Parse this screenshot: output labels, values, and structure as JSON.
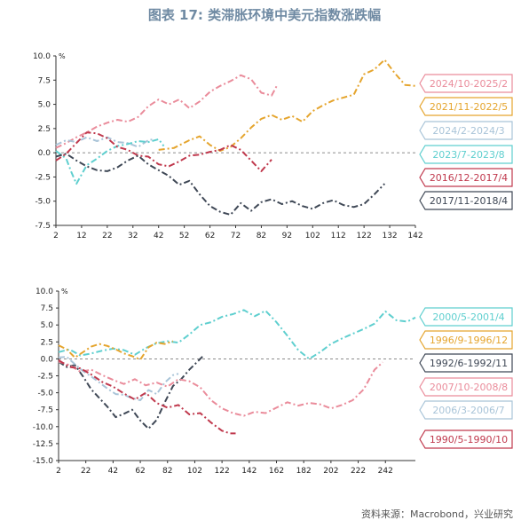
{
  "title": "图表 17: 类滞胀环境中美元指数涨跌幅",
  "source": "资料来源：Macrobond，兴业研究",
  "chart_data": [
    {
      "type": "line",
      "unit": "%",
      "ylim": [
        -7.5,
        10
      ],
      "yticks": [
        "10.0",
        "7.5",
        "5.0",
        "2.5",
        "0.0",
        "-2.5",
        "-5.0",
        "-7.5"
      ],
      "xticks": [
        "2",
        "12",
        "22",
        "32",
        "42",
        "52",
        "62",
        "72",
        "82",
        "92",
        "102",
        "112",
        "122",
        "132",
        "142"
      ],
      "xlim": [
        2,
        142
      ],
      "series": [
        {
          "name": "2024/10-2025/2",
          "color": "#ea8c9b",
          "x": [
            2,
            6,
            10,
            14,
            18,
            22,
            26,
            30,
            34,
            38,
            42,
            46,
            50,
            54,
            58,
            62,
            66,
            70,
            74,
            78,
            82,
            86,
            88
          ],
          "y": [
            0.5,
            1.0,
            1.6,
            2.1,
            2.7,
            3.1,
            3.4,
            3.2,
            3.7,
            4.8,
            5.5,
            5.0,
            5.5,
            4.6,
            5.3,
            6.3,
            6.9,
            7.4,
            8.0,
            7.6,
            6.2,
            5.9,
            6.9
          ]
        },
        {
          "name": "2021/11-2022/5",
          "color": "#e5a52e",
          "x": [
            42,
            48,
            54,
            58,
            62,
            66,
            70,
            74,
            78,
            82,
            86,
            90,
            94,
            98,
            102,
            106,
            110,
            114,
            118,
            122,
            126,
            130,
            134,
            138,
            142
          ],
          "y": [
            0.3,
            0.5,
            1.3,
            1.7,
            0.8,
            0.2,
            0.6,
            1.5,
            2.6,
            3.5,
            3.9,
            3.4,
            3.8,
            3.2,
            4.3,
            4.9,
            5.4,
            5.7,
            6.0,
            8.1,
            8.6,
            9.6,
            8.2,
            7.0,
            6.9
          ]
        },
        {
          "name": "2024/2-2024/3",
          "color": "#a9c4d8",
          "x": [
            2,
            6,
            10,
            14,
            18,
            22,
            26,
            30,
            34,
            38,
            40
          ],
          "y": [
            0.8,
            1.3,
            1.1,
            1.6,
            1.2,
            1.6,
            1.1,
            1.0,
            0.6,
            1.3,
            1.4
          ]
        },
        {
          "name": "2023/7-2023/8",
          "color": "#5fcfcf",
          "x": [
            2,
            6,
            8,
            10,
            14,
            18,
            22,
            26,
            30,
            34,
            38,
            42,
            44
          ],
          "y": [
            0.2,
            -0.6,
            -2.0,
            -3.2,
            -1.3,
            -0.6,
            0.2,
            0.7,
            0.9,
            1.2,
            1.1,
            1.4,
            0.7
          ]
        },
        {
          "name": "2016/12-2017/4",
          "color": "#c0394d",
          "x": [
            2,
            6,
            10,
            14,
            18,
            22,
            26,
            30,
            34,
            38,
            42,
            46,
            50,
            54,
            58,
            62,
            66,
            70,
            74,
            78,
            82,
            86
          ],
          "y": [
            -0.8,
            -0.1,
            1.0,
            2.1,
            2.0,
            1.5,
            0.6,
            0.3,
            -0.3,
            -0.4,
            -1.2,
            -1.4,
            -0.9,
            -0.3,
            -0.2,
            0.1,
            0.3,
            0.8,
            0.3,
            -0.8,
            -1.9,
            -0.7
          ]
        },
        {
          "name": "2017/11-2018/4",
          "color": "#3f4856",
          "x": [
            2,
            6,
            10,
            14,
            18,
            22,
            26,
            30,
            34,
            38,
            42,
            46,
            50,
            54,
            58,
            62,
            66,
            70,
            74,
            78,
            82,
            86,
            90,
            94,
            98,
            102,
            106,
            110,
            114,
            118,
            122,
            126,
            130
          ],
          "y": [
            -0.4,
            -0.1,
            -0.8,
            -1.4,
            -1.8,
            -1.9,
            -1.5,
            -0.8,
            -0.3,
            -1.2,
            -1.8,
            -2.4,
            -3.3,
            -2.9,
            -4.3,
            -5.5,
            -6.1,
            -6.4,
            -5.2,
            -6.0,
            -5.1,
            -4.8,
            -5.3,
            -5.0,
            -5.5,
            -5.8,
            -5.2,
            -4.9,
            -5.4,
            -5.6,
            -5.3,
            -4.3,
            -3.2
          ]
        }
      ]
    },
    {
      "type": "line",
      "unit": "%",
      "ylim": [
        -15,
        10
      ],
      "yticks": [
        "10.0",
        "7.5",
        "5.0",
        "2.5",
        "0.0",
        "-2.5",
        "-5.0",
        "-7.5",
        "-10.0",
        "-12.5",
        "-15.0"
      ],
      "xticks": [
        "2",
        "22",
        "42",
        "62",
        "82",
        "102",
        "122",
        "142",
        "162",
        "182",
        "202",
        "222",
        "242"
      ],
      "xlim": [
        2,
        264
      ],
      "series": [
        {
          "name": "2000/5-2001/4",
          "color": "#5fcfcf",
          "x": [
            2,
            10,
            18,
            26,
            34,
            42,
            50,
            58,
            66,
            74,
            82,
            90,
            98,
            106,
            114,
            122,
            130,
            138,
            146,
            154,
            162,
            170,
            178,
            186,
            194,
            202,
            210,
            218,
            226,
            234,
            242,
            250,
            258,
            264
          ],
          "y": [
            1.0,
            1.4,
            0.5,
            0.8,
            1.2,
            1.5,
            1.3,
            0.6,
            1.6,
            2.3,
            2.6,
            2.4,
            3.6,
            5.0,
            5.4,
            6.2,
            6.6,
            7.2,
            6.3,
            7.1,
            5.4,
            3.4,
            1.3,
            0.0,
            1.0,
            2.2,
            3.0,
            3.7,
            4.4,
            5.2,
            7.0,
            5.7,
            5.5,
            6.1
          ]
        },
        {
          "name": "1996/9-1996/12",
          "color": "#e5a52e",
          "x": [
            2,
            8,
            14,
            20,
            26,
            32,
            38,
            44,
            50,
            56,
            62,
            68,
            74,
            80,
            86
          ],
          "y": [
            2.0,
            1.4,
            0.2,
            1.0,
            1.8,
            2.2,
            1.9,
            1.4,
            0.8,
            0.4,
            -0.1,
            1.7,
            2.4,
            2.2,
            2.6
          ]
        },
        {
          "name": "1992/6-1992/11",
          "color": "#3f4856",
          "x": [
            2,
            8,
            14,
            20,
            26,
            32,
            38,
            44,
            50,
            56,
            62,
            68,
            74,
            80,
            86,
            92,
            98,
            104,
            108
          ],
          "y": [
            -0.4,
            -1.2,
            -0.9,
            -2.6,
            -4.5,
            -5.8,
            -7.1,
            -8.6,
            -8.1,
            -7.5,
            -9.1,
            -10.3,
            -9.0,
            -6.4,
            -4.0,
            -3.0,
            -1.6,
            -0.4,
            0.4
          ]
        },
        {
          "name": "2007/10-2008/8",
          "color": "#ea8c9b",
          "x": [
            2,
            10,
            18,
            26,
            34,
            42,
            50,
            58,
            66,
            74,
            82,
            90,
            98,
            106,
            114,
            122,
            130,
            138,
            146,
            154,
            162,
            170,
            178,
            186,
            194,
            202,
            210,
            218,
            226,
            234,
            240
          ],
          "y": [
            -0.4,
            -0.9,
            -1.9,
            -1.6,
            -2.4,
            -3.1,
            -3.7,
            -3.0,
            -3.9,
            -3.5,
            -4.1,
            -3.0,
            -3.3,
            -4.2,
            -6.1,
            -7.3,
            -8.0,
            -8.4,
            -7.8,
            -8.0,
            -7.2,
            -6.4,
            -6.9,
            -6.5,
            -6.7,
            -7.3,
            -6.8,
            -6.1,
            -4.5,
            -1.6,
            -0.5
          ]
        },
        {
          "name": "2006/3-2006/7",
          "color": "#a9c4d8",
          "x": [
            2,
            8,
            14,
            20,
            26,
            32,
            38,
            44,
            50,
            56,
            62,
            68,
            74,
            80,
            86,
            90
          ],
          "y": [
            0.2,
            0.3,
            -0.8,
            -1.8,
            -2.6,
            -3.5,
            -4.4,
            -5.2,
            -5.3,
            -5.8,
            -6.1,
            -4.6,
            -5.2,
            -3.5,
            -2.4,
            -2.2
          ]
        },
        {
          "name": "1990/5-1990/10",
          "color": "#c0394d",
          "x": [
            2,
            10,
            18,
            26,
            34,
            42,
            50,
            58,
            66,
            74,
            82,
            90,
            98,
            106,
            114,
            122,
            128,
            132
          ],
          "y": [
            -0.2,
            -1.2,
            -1.4,
            -2.3,
            -3.4,
            -4.1,
            -5.1,
            -6.0,
            -5.0,
            -6.5,
            -7.2,
            -6.8,
            -8.2,
            -8.0,
            -9.4,
            -10.6,
            -11.0,
            -11.0
          ]
        }
      ]
    }
  ]
}
